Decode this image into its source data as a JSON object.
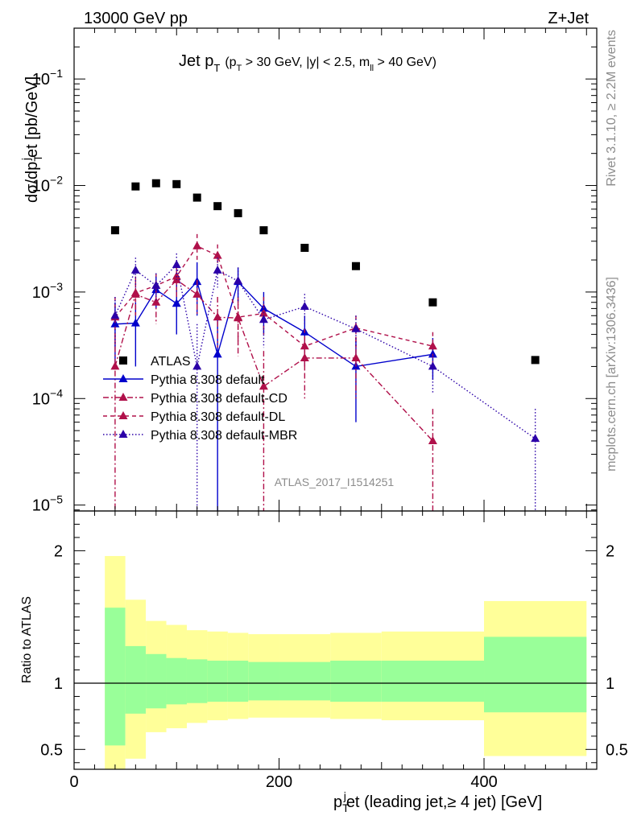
{
  "header": {
    "left": "13000 GeV pp",
    "right": "Z+Jet"
  },
  "side_labels": {
    "rivet": "Rivet 3.1.10, ≥ 2.2M events",
    "mcplots": "mcplots.cern.ch [arXiv:1306.3436]"
  },
  "chart_data": {
    "type": "scatter",
    "title": "Jet p_T (p_T > 30 GeV, |y| < 2.5, m_ll > 40 GeV)",
    "title_parts": {
      "main": "Jet p",
      "main_sub": "T",
      "cut_open": "(p",
      "cut_sub": "T",
      "cut_mid": " > 30 GeV, |y| < 2.5, m",
      "cut_sub2": "ll",
      "cut_close": " > 40 GeV)"
    },
    "analysis_id": "ATLAS_2017_I1514251",
    "xlabel": "p_T^j et (leading jet,≥ 4 jet) [GeV]",
    "xlabel_parts": {
      "p": "p",
      "sup": "j",
      "sub": "T",
      "rest": "et (leading jet,≥ 4 jet) [GeV]"
    },
    "ylabel": "dσ/dp_T^j et [pb/GeV]",
    "ylabel_parts": {
      "a": "dσ/dp",
      "sup": "j",
      "sub": "T",
      "b": "et [pb/GeV]"
    },
    "ratio_ylabel": "Ratio to ATLAS",
    "xlim": [
      0,
      510
    ],
    "ylim": [
      8.8e-06,
      0.3
    ],
    "ylog": true,
    "ratio_ylim": [
      0.35,
      2.3
    ],
    "xticks": [
      0,
      200,
      400
    ],
    "xtick_labels": [
      "0",
      "200",
      "400"
    ],
    "yticks": [
      1e-05,
      0.0001,
      0.001,
      0.01,
      0.1
    ],
    "ytick_labels": [
      {
        "base": "10",
        "exp": "−5"
      },
      {
        "base": "10",
        "exp": "−4"
      },
      {
        "base": "10",
        "exp": "−3"
      },
      {
        "base": "10",
        "exp": "−2"
      },
      {
        "base": "10",
        "exp": "−1"
      }
    ],
    "ratio_yticks": [
      0.5,
      1,
      2
    ],
    "ratio_ytick_labels": [
      "0.5",
      "1",
      "2"
    ],
    "bin_edges": [
      30,
      50,
      70,
      90,
      110,
      130,
      150,
      170,
      200,
      250,
      300,
      400,
      500
    ],
    "atlas": {
      "name": "ATLAS",
      "x": [
        40,
        60,
        80,
        100,
        120,
        140,
        160,
        185,
        225,
        275,
        350,
        450
      ],
      "y": [
        0.0038,
        0.0098,
        0.0105,
        0.0103,
        0.0077,
        0.0064,
        0.0055,
        0.0038,
        0.0026,
        0.00175,
        0.0008,
        0.00023
      ],
      "ratio_band_inner": [
        [
          0.53,
          1.57
        ],
        [
          0.77,
          1.28
        ],
        [
          0.81,
          1.22
        ],
        [
          0.84,
          1.19
        ],
        [
          0.85,
          1.18
        ],
        [
          0.86,
          1.17
        ],
        [
          0.86,
          1.17
        ],
        [
          0.87,
          1.16
        ],
        [
          0.87,
          1.16
        ],
        [
          0.86,
          1.17
        ],
        [
          0.86,
          1.17
        ],
        [
          0.78,
          1.35
        ]
      ],
      "ratio_band_outer": [
        [
          0.35,
          1.96
        ],
        [
          0.43,
          1.63
        ],
        [
          0.63,
          1.47
        ],
        [
          0.66,
          1.44
        ],
        [
          0.7,
          1.4
        ],
        [
          0.72,
          1.39
        ],
        [
          0.73,
          1.38
        ],
        [
          0.74,
          1.37
        ],
        [
          0.74,
          1.37
        ],
        [
          0.73,
          1.38
        ],
        [
          0.72,
          1.39
        ],
        [
          0.45,
          1.62
        ]
      ]
    },
    "series": [
      {
        "name": "Pythia 8.308 default",
        "color": "#0000cc",
        "dash": "",
        "marker": "up",
        "x": [
          40,
          60,
          80,
          100,
          120,
          140,
          160,
          185,
          225,
          275,
          350
        ],
        "y": [
          0.0005,
          0.00051,
          0.00105,
          0.00078,
          0.00125,
          0.00026,
          0.00125,
          0.0007,
          0.00042,
          0.0002,
          0.00026
        ],
        "ylo": [
          0.0002,
          0.0002,
          0.0007,
          0.0004,
          0.0006,
          1e-06,
          0.0008,
          0.0004,
          0.0002,
          6e-05,
          0.00015
        ],
        "yhi": [
          0.0008,
          0.0008,
          0.0014,
          0.0012,
          0.0019,
          0.0006,
          0.0017,
          0.001,
          0.0006,
          0.00035,
          0.00037
        ]
      },
      {
        "name": "Pythia 8.308 default-CD",
        "color": "#b0104a",
        "dash": "7,3,2,3",
        "marker": "up",
        "x": [
          40,
          60,
          80,
          100,
          120,
          140,
          160,
          185,
          225,
          275,
          350
        ],
        "y": [
          0.0002,
          0.00095,
          0.0008,
          0.0013,
          0.00095,
          0.00058,
          0.00057,
          0.00013,
          0.00024,
          0.00024,
          4e-05
        ],
        "ylo": [
          1e-06,
          0.0006,
          0.0005,
          0.0009,
          0.0006,
          0.0003,
          0.00025,
          1e-06,
          0.0001,
          0.0001,
          1e-06
        ],
        "yhi": [
          0.0004,
          0.0013,
          0.0011,
          0.0017,
          0.0013,
          0.0009,
          0.00085,
          0.00028,
          0.00038,
          0.00038,
          8e-05
        ]
      },
      {
        "name": "Pythia 8.308 default-DL",
        "color": "#b0104a",
        "dash": "5,4",
        "marker": "up",
        "x": [
          40,
          60,
          80,
          100,
          120,
          140,
          160,
          185,
          225,
          275,
          350
        ],
        "y": [
          0.00058,
          0.00098,
          0.00115,
          0.0014,
          0.0027,
          0.0022,
          0.00058,
          0.00063,
          0.00031,
          0.00046,
          0.00031
        ],
        "ylo": [
          0.0003,
          0.0006,
          0.0008,
          0.001,
          0.0019,
          0.0016,
          0.0003,
          0.0004,
          0.00018,
          0.0003,
          0.0002
        ],
        "yhi": [
          0.0009,
          0.0014,
          0.0015,
          0.0018,
          0.0035,
          0.0028,
          0.0009,
          0.0009,
          0.00045,
          0.0006,
          0.00042
        ]
      },
      {
        "name": "Pythia 8.308 default-MBR",
        "color": "#2b00a8",
        "dash": "1.5,2.5",
        "marker": "up",
        "x": [
          40,
          60,
          80,
          100,
          120,
          140,
          160,
          185,
          225,
          275,
          350,
          450
        ],
        "y": [
          0.0006,
          0.0016,
          0.00115,
          0.0018,
          0.0002,
          0.0016,
          0.00127,
          0.00055,
          0.00073,
          0.00045,
          0.0002,
          4.2e-05
        ],
        "ylo": [
          0.0003,
          0.0011,
          0.0008,
          0.0013,
          1e-06,
          0.0011,
          0.0008,
          0.0003,
          0.0005,
          0.0003,
          0.00011,
          1e-06
        ],
        "yhi": [
          0.0009,
          0.0021,
          0.0015,
          0.0023,
          0.0005,
          0.0021,
          0.0017,
          0.0008,
          0.00096,
          0.0006,
          0.00029,
          8e-05
        ]
      }
    ],
    "legend_position": "center-left"
  }
}
